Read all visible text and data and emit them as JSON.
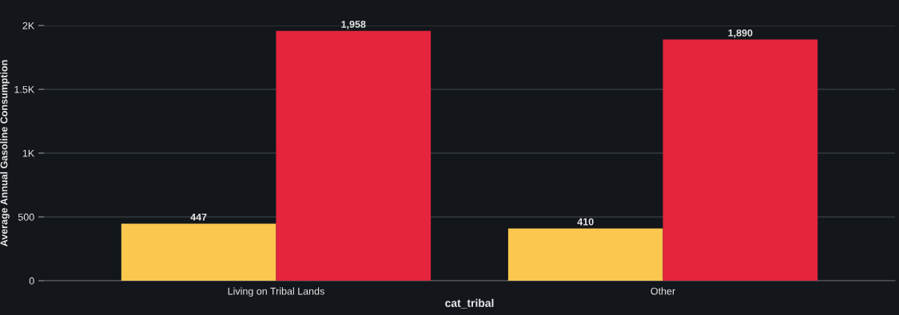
{
  "chart_data": {
    "type": "bar",
    "xlabel": "cat_tribal",
    "ylabel": "Average Annual Gasoline Consumption",
    "categories": [
      "Living on Tribal Lands",
      "Other"
    ],
    "series": [
      {
        "color": "#fcc74f",
        "values": [
          447,
          410
        ],
        "value_labels": [
          "447",
          "410"
        ]
      },
      {
        "color": "#e5243e",
        "values": [
          1958,
          1890
        ],
        "value_labels": [
          "1,958",
          "1,890"
        ]
      }
    ],
    "ylim": [
      0,
      2000
    ],
    "yticks": [
      0,
      500,
      {
        "value": 1000,
        "label": "1K"
      },
      {
        "value": 1500,
        "label": "1.5K"
      },
      {
        "value": 2000,
        "label": "2K"
      }
    ],
    "grid": "y"
  }
}
